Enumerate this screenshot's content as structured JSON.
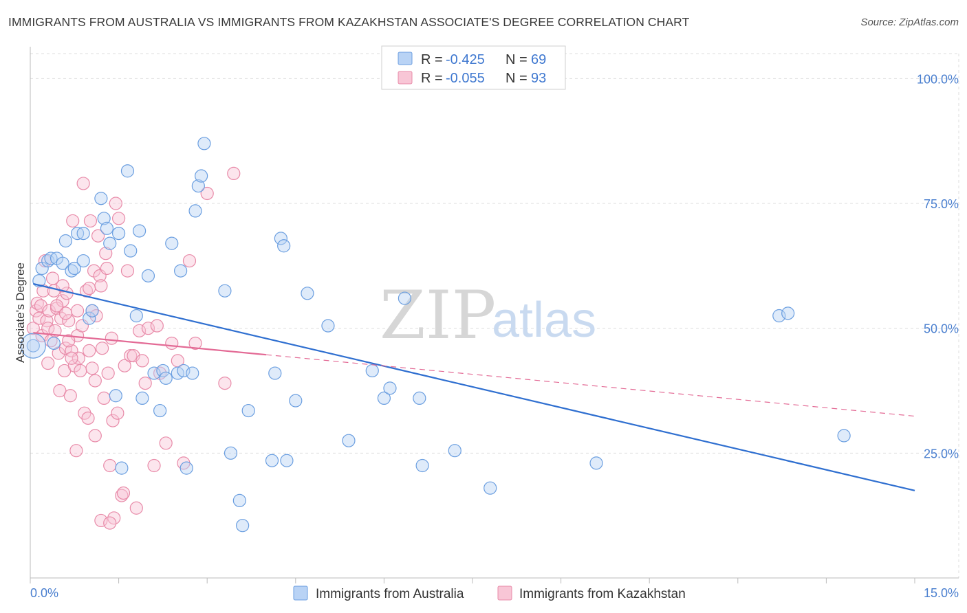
{
  "header": {
    "title": "IMMIGRANTS FROM AUSTRALIA VS IMMIGRANTS FROM KAZAKHSTAN ASSOCIATE'S DEGREE CORRELATION CHART",
    "source": "Source: ZipAtlas.com"
  },
  "watermark": {
    "zip": "ZIP",
    "atlas": "atlas"
  },
  "legend": {
    "rows": [
      {
        "r_label": "R =",
        "r_value": "-0.425",
        "n_label": "N =",
        "n_value": "69"
      },
      {
        "r_label": "R =",
        "r_value": "-0.055",
        "n_label": "N =",
        "n_value": "93"
      }
    ]
  },
  "colors": {
    "australia_fill": "#b9d3f5",
    "australia_stroke": "#6a9ee0",
    "australia_line": "#2f6fd0",
    "kazakhstan_fill": "#f8c6d6",
    "kazakhstan_stroke": "#e88aa8",
    "kazakhstan_line": "#e36a95",
    "grid": "#dddddd",
    "axis_text": "#4a7fcf"
  },
  "chart_data": {
    "type": "scatter",
    "title": "IMMIGRANTS FROM AUSTRALIA VS IMMIGRANTS FROM KAZAKHSTAN ASSOCIATE'S DEGREE CORRELATION CHART",
    "xlabel": "",
    "ylabel": "Associate's Degree",
    "xlim": [
      0,
      15
    ],
    "ylim": [
      0,
      105
    ],
    "x_tick_labels": [
      "0.0%",
      "15.0%"
    ],
    "y_ticks": [
      25,
      50,
      75,
      100
    ],
    "y_tick_labels": [
      "25.0%",
      "50.0%",
      "75.0%",
      "100.0%"
    ],
    "legend_position": "top-center",
    "series": [
      {
        "name": "Immigrants from Australia",
        "color": "#6a9ee0",
        "r": -0.425,
        "n": 69,
        "trend": {
          "x": [
            0.05,
            15.0
          ],
          "y": [
            58.9,
            17.5
          ],
          "style": "solid"
        },
        "points": [
          [
            0.05,
            46.5
          ],
          [
            0.15,
            59.5
          ],
          [
            0.2,
            62.0
          ],
          [
            0.3,
            63.5
          ],
          [
            0.35,
            64.0
          ],
          [
            0.45,
            64.0
          ],
          [
            0.55,
            63.0
          ],
          [
            0.6,
            67.5
          ],
          [
            0.7,
            61.5
          ],
          [
            0.75,
            62.0
          ],
          [
            0.8,
            69.0
          ],
          [
            0.9,
            69.0
          ],
          [
            0.9,
            63.5
          ],
          [
            1.0,
            52.0
          ],
          [
            1.05,
            53.5
          ],
          [
            1.2,
            76.0
          ],
          [
            1.25,
            72.0
          ],
          [
            1.3,
            70.0
          ],
          [
            1.35,
            67.0
          ],
          [
            1.45,
            36.5
          ],
          [
            1.5,
            69.0
          ],
          [
            1.55,
            22.0
          ],
          [
            1.65,
            81.5
          ],
          [
            1.7,
            65.5
          ],
          [
            1.8,
            52.5
          ],
          [
            1.85,
            69.5
          ],
          [
            1.9,
            36.0
          ],
          [
            2.0,
            60.5
          ],
          [
            2.1,
            41.0
          ],
          [
            2.2,
            33.5
          ],
          [
            2.25,
            41.5
          ],
          [
            2.3,
            40.0
          ],
          [
            2.4,
            67.0
          ],
          [
            2.5,
            41.0
          ],
          [
            2.55,
            61.5
          ],
          [
            2.6,
            41.5
          ],
          [
            2.65,
            22.0
          ],
          [
            2.75,
            41.0
          ],
          [
            2.8,
            73.5
          ],
          [
            2.85,
            78.5
          ],
          [
            2.9,
            80.5
          ],
          [
            2.95,
            87.0
          ],
          [
            3.3,
            57.5
          ],
          [
            3.4,
            25.0
          ],
          [
            3.55,
            15.5
          ],
          [
            3.6,
            10.5
          ],
          [
            3.7,
            33.5
          ],
          [
            4.1,
            23.5
          ],
          [
            4.15,
            41.0
          ],
          [
            4.25,
            68.0
          ],
          [
            4.3,
            66.5
          ],
          [
            4.35,
            23.5
          ],
          [
            4.5,
            35.5
          ],
          [
            4.7,
            57.0
          ],
          [
            5.05,
            50.5
          ],
          [
            5.4,
            27.5
          ],
          [
            5.8,
            41.5
          ],
          [
            6.0,
            36.0
          ],
          [
            6.1,
            38.0
          ],
          [
            6.35,
            56.0
          ],
          [
            6.6,
            36.0
          ],
          [
            6.65,
            22.5
          ],
          [
            7.2,
            25.5
          ],
          [
            7.8,
            18.0
          ],
          [
            9.6,
            23.0
          ],
          [
            12.7,
            52.5
          ],
          [
            12.85,
            53.0
          ],
          [
            13.8,
            28.5
          ],
          [
            0.4,
            47.0
          ]
        ]
      },
      {
        "name": "Immigrants from Kazakhstan",
        "color": "#e88aa8",
        "r": -0.055,
        "n": 93,
        "trend": {
          "x": [
            0.05,
            4.0
          ],
          "y": [
            49.1,
            44.7
          ],
          "style": "solid",
          "dashed_extension": {
            "x": [
              4.0,
              15.0
            ],
            "y": [
              44.7,
              32.4
            ]
          }
        },
        "points": [
          [
            0.05,
            50.0
          ],
          [
            0.1,
            53.5
          ],
          [
            0.12,
            55.0
          ],
          [
            0.15,
            52.0
          ],
          [
            0.18,
            54.5
          ],
          [
            0.2,
            48.5
          ],
          [
            0.22,
            57.5
          ],
          [
            0.25,
            63.5
          ],
          [
            0.28,
            51.5
          ],
          [
            0.3,
            50.0
          ],
          [
            0.32,
            53.5
          ],
          [
            0.35,
            47.5
          ],
          [
            0.38,
            60.0
          ],
          [
            0.4,
            57.5
          ],
          [
            0.42,
            49.5
          ],
          [
            0.45,
            54.0
          ],
          [
            0.48,
            45.0
          ],
          [
            0.5,
            37.5
          ],
          [
            0.52,
            52.0
          ],
          [
            0.55,
            55.5
          ],
          [
            0.58,
            41.5
          ],
          [
            0.6,
            46.0
          ],
          [
            0.62,
            57.0
          ],
          [
            0.65,
            51.5
          ],
          [
            0.68,
            36.5
          ],
          [
            0.7,
            45.5
          ],
          [
            0.72,
            71.5
          ],
          [
            0.75,
            42.5
          ],
          [
            0.78,
            25.5
          ],
          [
            0.8,
            48.5
          ],
          [
            0.82,
            44.0
          ],
          [
            0.85,
            41.5
          ],
          [
            0.88,
            50.5
          ],
          [
            0.9,
            79.0
          ],
          [
            0.92,
            33.0
          ],
          [
            0.95,
            57.5
          ],
          [
            0.98,
            32.0
          ],
          [
            1.0,
            58.0
          ],
          [
            1.02,
            71.5
          ],
          [
            1.05,
            53.5
          ],
          [
            1.08,
            61.5
          ],
          [
            1.1,
            28.5
          ],
          [
            1.12,
            52.5
          ],
          [
            1.15,
            68.5
          ],
          [
            1.18,
            60.5
          ],
          [
            1.2,
            58.5
          ],
          [
            1.22,
            46.0
          ],
          [
            1.25,
            36.0
          ],
          [
            1.28,
            65.0
          ],
          [
            1.3,
            62.0
          ],
          [
            1.32,
            41.0
          ],
          [
            1.35,
            22.5
          ],
          [
            1.38,
            48.0
          ],
          [
            1.4,
            31.5
          ],
          [
            1.42,
            12.0
          ],
          [
            1.45,
            75.0
          ],
          [
            1.48,
            33.0
          ],
          [
            1.5,
            72.0
          ],
          [
            1.55,
            16.5
          ],
          [
            1.58,
            17.0
          ],
          [
            1.6,
            42.5
          ],
          [
            1.65,
            61.5
          ],
          [
            1.7,
            44.5
          ],
          [
            1.75,
            44.5
          ],
          [
            1.8,
            14.0
          ],
          [
            1.85,
            49.5
          ],
          [
            1.9,
            43.5
          ],
          [
            1.95,
            39.0
          ],
          [
            2.0,
            50.0
          ],
          [
            2.1,
            22.5
          ],
          [
            2.15,
            50.5
          ],
          [
            2.2,
            41.0
          ],
          [
            2.3,
            27.0
          ],
          [
            2.4,
            47.0
          ],
          [
            2.5,
            43.5
          ],
          [
            2.6,
            23.0
          ],
          [
            2.7,
            63.5
          ],
          [
            2.8,
            47.0
          ],
          [
            3.0,
            77.0
          ],
          [
            3.3,
            39.0
          ],
          [
            3.45,
            81.0
          ],
          [
            0.6,
            53.0
          ],
          [
            0.65,
            47.5
          ],
          [
            0.7,
            44.0
          ],
          [
            1.0,
            45.5
          ],
          [
            1.05,
            42.0
          ],
          [
            1.2,
            11.5
          ],
          [
            1.35,
            11.0
          ],
          [
            0.3,
            43.0
          ],
          [
            0.45,
            54.5
          ],
          [
            0.55,
            58.5
          ],
          [
            0.8,
            53.5
          ],
          [
            1.1,
            39.5
          ]
        ]
      }
    ]
  },
  "bottom_legend": {
    "items": [
      {
        "label": "Immigrants from Australia"
      },
      {
        "label": "Immigrants from Kazakhstan"
      }
    ]
  }
}
